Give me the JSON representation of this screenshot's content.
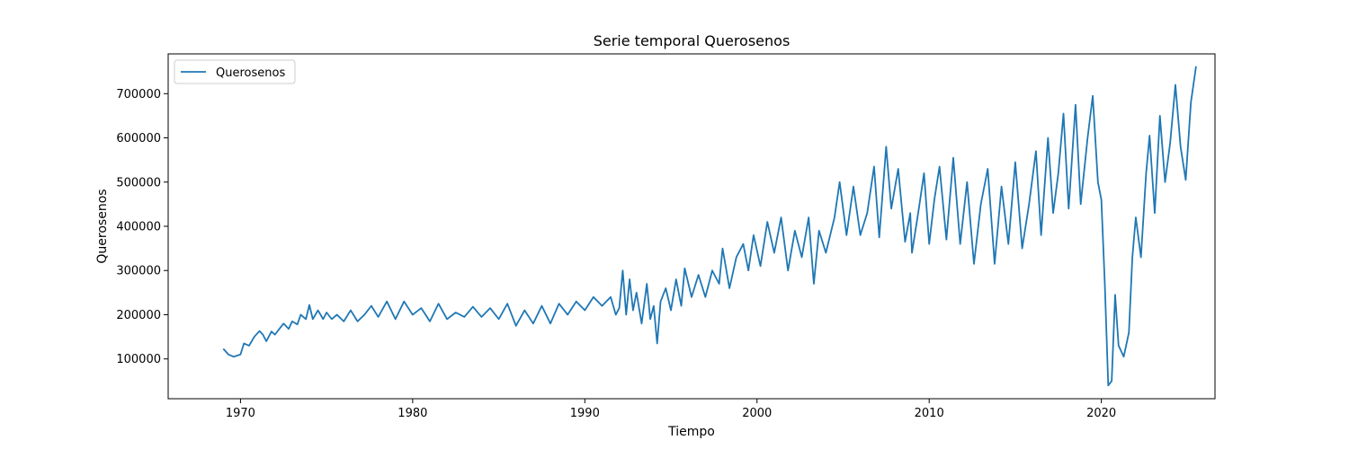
{
  "chart_data": {
    "type": "line",
    "title": "Serie temporal Querosenos",
    "xlabel": "Tiempo",
    "ylabel": "Querosenos",
    "xlim": [
      1965.8,
      2026.6
    ],
    "ylim": [
      10000,
      790000
    ],
    "xticks": [
      1970,
      1980,
      1990,
      2000,
      2010,
      2020
    ],
    "xtick_labels": [
      "1970",
      "1980",
      "1990",
      "2000",
      "2010",
      "2020"
    ],
    "yticks": [
      100000,
      200000,
      300000,
      400000,
      500000,
      600000,
      700000
    ],
    "ytick_labels": [
      "100000",
      "200000",
      "300000",
      "400000",
      "500000",
      "600000",
      "700000"
    ],
    "grid": false,
    "legend": {
      "position": "upper-left",
      "entries": [
        "Querosenos"
      ]
    },
    "series": [
      {
        "name": "Querosenos",
        "color": "#1f77b4",
        "points": [
          [
            1969.0,
            123000
          ],
          [
            1969.3,
            110000
          ],
          [
            1969.6,
            105000
          ],
          [
            1970.0,
            110000
          ],
          [
            1970.2,
            135000
          ],
          [
            1970.5,
            130000
          ],
          [
            1970.8,
            150000
          ],
          [
            1971.1,
            163000
          ],
          [
            1971.3,
            155000
          ],
          [
            1971.5,
            140000
          ],
          [
            1971.8,
            162000
          ],
          [
            1972.0,
            155000
          ],
          [
            1972.3,
            170000
          ],
          [
            1972.5,
            180000
          ],
          [
            1972.8,
            168000
          ],
          [
            1973.0,
            185000
          ],
          [
            1973.3,
            178000
          ],
          [
            1973.5,
            200000
          ],
          [
            1973.8,
            190000
          ],
          [
            1974.0,
            222000
          ],
          [
            1974.2,
            190000
          ],
          [
            1974.5,
            210000
          ],
          [
            1974.8,
            190000
          ],
          [
            1975.0,
            205000
          ],
          [
            1975.3,
            190000
          ],
          [
            1975.6,
            200000
          ],
          [
            1976.0,
            185000
          ],
          [
            1976.4,
            210000
          ],
          [
            1976.8,
            185000
          ],
          [
            1977.2,
            200000
          ],
          [
            1977.6,
            220000
          ],
          [
            1978.0,
            195000
          ],
          [
            1978.5,
            230000
          ],
          [
            1979.0,
            190000
          ],
          [
            1979.5,
            230000
          ],
          [
            1980.0,
            200000
          ],
          [
            1980.5,
            215000
          ],
          [
            1981.0,
            185000
          ],
          [
            1981.5,
            225000
          ],
          [
            1982.0,
            190000
          ],
          [
            1982.5,
            205000
          ],
          [
            1983.0,
            195000
          ],
          [
            1983.5,
            218000
          ],
          [
            1984.0,
            195000
          ],
          [
            1984.5,
            215000
          ],
          [
            1985.0,
            190000
          ],
          [
            1985.5,
            225000
          ],
          [
            1986.0,
            175000
          ],
          [
            1986.5,
            210000
          ],
          [
            1987.0,
            180000
          ],
          [
            1987.5,
            220000
          ],
          [
            1988.0,
            180000
          ],
          [
            1988.5,
            225000
          ],
          [
            1989.0,
            200000
          ],
          [
            1989.5,
            230000
          ],
          [
            1990.0,
            210000
          ],
          [
            1990.5,
            240000
          ],
          [
            1991.0,
            220000
          ],
          [
            1991.5,
            240000
          ],
          [
            1991.8,
            200000
          ],
          [
            1992.0,
            215000
          ],
          [
            1992.2,
            300000
          ],
          [
            1992.4,
            200000
          ],
          [
            1992.6,
            280000
          ],
          [
            1992.8,
            210000
          ],
          [
            1993.0,
            250000
          ],
          [
            1993.3,
            180000
          ],
          [
            1993.6,
            270000
          ],
          [
            1993.8,
            190000
          ],
          [
            1994.0,
            220000
          ],
          [
            1994.2,
            135000
          ],
          [
            1994.4,
            230000
          ],
          [
            1994.7,
            260000
          ],
          [
            1995.0,
            210000
          ],
          [
            1995.3,
            280000
          ],
          [
            1995.6,
            220000
          ],
          [
            1995.8,
            305000
          ],
          [
            1996.2,
            240000
          ],
          [
            1996.6,
            290000
          ],
          [
            1997.0,
            240000
          ],
          [
            1997.4,
            300000
          ],
          [
            1997.8,
            270000
          ],
          [
            1998.0,
            350000
          ],
          [
            1998.4,
            260000
          ],
          [
            1998.8,
            330000
          ],
          [
            1999.2,
            360000
          ],
          [
            1999.5,
            300000
          ],
          [
            1999.8,
            380000
          ],
          [
            2000.2,
            310000
          ],
          [
            2000.6,
            410000
          ],
          [
            2001.0,
            340000
          ],
          [
            2001.4,
            420000
          ],
          [
            2001.8,
            300000
          ],
          [
            2002.2,
            390000
          ],
          [
            2002.6,
            330000
          ],
          [
            2003.0,
            420000
          ],
          [
            2003.3,
            270000
          ],
          [
            2003.6,
            390000
          ],
          [
            2004.0,
            340000
          ],
          [
            2004.5,
            420000
          ],
          [
            2004.8,
            500000
          ],
          [
            2005.2,
            380000
          ],
          [
            2005.6,
            490000
          ],
          [
            2006.0,
            380000
          ],
          [
            2006.4,
            430000
          ],
          [
            2006.8,
            535000
          ],
          [
            2007.1,
            375000
          ],
          [
            2007.5,
            580000
          ],
          [
            2007.8,
            440000
          ],
          [
            2008.2,
            530000
          ],
          [
            2008.6,
            365000
          ],
          [
            2008.9,
            430000
          ],
          [
            2009.0,
            340000
          ],
          [
            2009.4,
            440000
          ],
          [
            2009.7,
            520000
          ],
          [
            2010.0,
            360000
          ],
          [
            2010.3,
            460000
          ],
          [
            2010.6,
            535000
          ],
          [
            2011.0,
            370000
          ],
          [
            2011.4,
            555000
          ],
          [
            2011.8,
            360000
          ],
          [
            2012.2,
            500000
          ],
          [
            2012.6,
            315000
          ],
          [
            2013.0,
            450000
          ],
          [
            2013.4,
            530000
          ],
          [
            2013.8,
            315000
          ],
          [
            2014.2,
            490000
          ],
          [
            2014.6,
            360000
          ],
          [
            2015.0,
            545000
          ],
          [
            2015.4,
            350000
          ],
          [
            2015.8,
            450000
          ],
          [
            2016.2,
            570000
          ],
          [
            2016.5,
            380000
          ],
          [
            2016.9,
            600000
          ],
          [
            2017.2,
            430000
          ],
          [
            2017.5,
            520000
          ],
          [
            2017.8,
            655000
          ],
          [
            2018.1,
            440000
          ],
          [
            2018.5,
            675000
          ],
          [
            2018.8,
            450000
          ],
          [
            2019.2,
            600000
          ],
          [
            2019.5,
            695000
          ],
          [
            2019.8,
            500000
          ],
          [
            2020.0,
            460000
          ],
          [
            2020.2,
            270000
          ],
          [
            2020.4,
            40000
          ],
          [
            2020.6,
            50000
          ],
          [
            2020.8,
            245000
          ],
          [
            2021.0,
            130000
          ],
          [
            2021.3,
            105000
          ],
          [
            2021.6,
            160000
          ],
          [
            2021.8,
            330000
          ],
          [
            2022.0,
            420000
          ],
          [
            2022.3,
            330000
          ],
          [
            2022.6,
            520000
          ],
          [
            2022.8,
            605000
          ],
          [
            2023.1,
            430000
          ],
          [
            2023.4,
            650000
          ],
          [
            2023.7,
            500000
          ],
          [
            2024.0,
            590000
          ],
          [
            2024.3,
            720000
          ],
          [
            2024.6,
            580000
          ],
          [
            2024.9,
            505000
          ],
          [
            2025.2,
            680000
          ],
          [
            2025.5,
            762000
          ]
        ]
      }
    ]
  }
}
